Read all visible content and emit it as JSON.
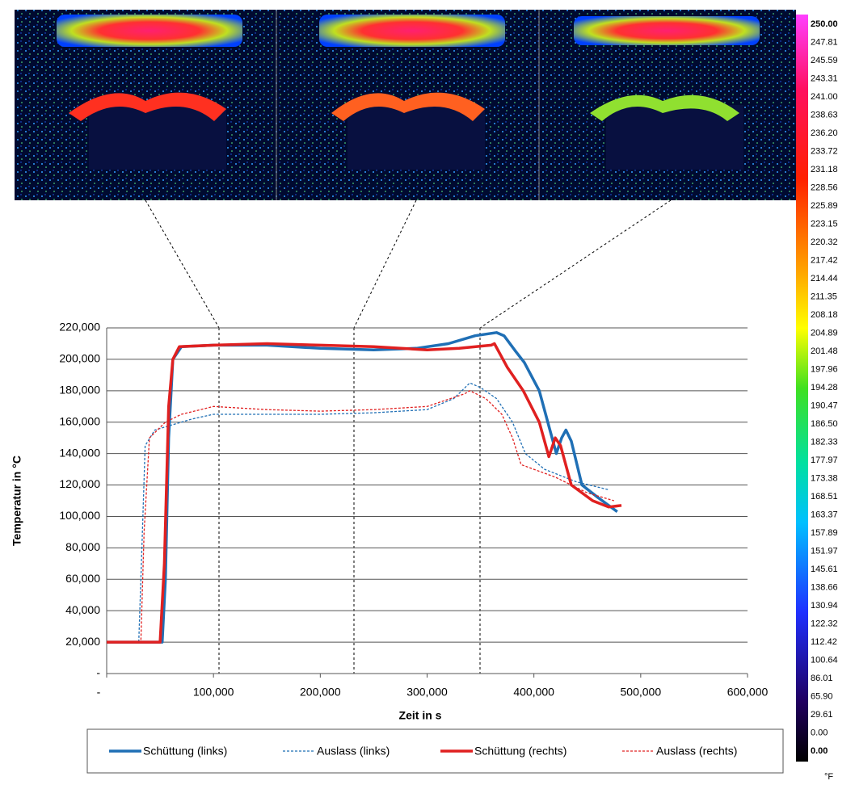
{
  "chart_data": {
    "type": "line",
    "xlabel": "Zeit in s",
    "ylabel": "Temperatur in °C",
    "xlim": [
      0,
      600
    ],
    "ylim": [
      0,
      220
    ],
    "xticks": [
      {
        "value": 0,
        "label": "-"
      },
      {
        "value": 100,
        "label": "100,000"
      },
      {
        "value": 200,
        "label": "200,000"
      },
      {
        "value": 300,
        "label": "300,000"
      },
      {
        "value": 400,
        "label": "400,000"
      },
      {
        "value": 500,
        "label": "500,000"
      },
      {
        "value": 600,
        "label": "600,000"
      }
    ],
    "yticks": [
      {
        "value": 0,
        "label": "-"
      },
      {
        "value": 20,
        "label": "20,000"
      },
      {
        "value": 40,
        "label": "40,000"
      },
      {
        "value": 60,
        "label": "60,000"
      },
      {
        "value": 80,
        "label": "80,000"
      },
      {
        "value": 100,
        "label": "100,000"
      },
      {
        "value": 120,
        "label": "120,000"
      },
      {
        "value": 140,
        "label": "140,000"
      },
      {
        "value": 160,
        "label": "160,000"
      },
      {
        "value": 180,
        "label": "180,000"
      },
      {
        "value": 200,
        "label": "200,000"
      },
      {
        "value": 220,
        "label": "220,000"
      }
    ],
    "grid": true,
    "series": [
      {
        "name": "Schüttung (links)",
        "color": "#1f6fb5",
        "dashed": false,
        "x": [
          0,
          52,
          55,
          58,
          62,
          70,
          100,
          150,
          200,
          250,
          290,
          320,
          345,
          365,
          372,
          383,
          391,
          405,
          415,
          421,
          426,
          430,
          435,
          445,
          460,
          478
        ],
        "values": [
          20,
          20,
          60,
          150,
          200,
          208,
          209,
          209,
          207,
          206,
          207,
          210,
          215,
          217,
          215,
          205,
          198,
          180,
          155,
          140,
          150,
          155,
          148,
          120,
          112,
          103
        ]
      },
      {
        "name": "Auslass (links)",
        "color": "#1f6fb5",
        "dashed": true,
        "x": [
          0,
          30,
          33,
          36,
          45,
          60,
          80,
          100,
          150,
          200,
          250,
          300,
          325,
          340,
          350,
          365,
          380,
          392,
          410,
          440,
          470
        ],
        "values": [
          20,
          20,
          80,
          145,
          155,
          158,
          162,
          165,
          165,
          165,
          166,
          168,
          175,
          185,
          182,
          175,
          160,
          140,
          130,
          122,
          117
        ]
      },
      {
        "name": "Schüttung (rechts)",
        "color": "#e02020",
        "dashed": false,
        "x": [
          0,
          50,
          54,
          58,
          62,
          68,
          100,
          150,
          200,
          250,
          300,
          330,
          360,
          363,
          375,
          390,
          405,
          414,
          420,
          425,
          435,
          455,
          470,
          482
        ],
        "values": [
          20,
          20,
          70,
          170,
          200,
          208,
          209,
          210,
          209,
          208,
          206,
          207,
          209,
          210,
          195,
          180,
          160,
          138,
          150,
          145,
          120,
          110,
          106,
          107
        ]
      },
      {
        "name": "Auslass (rechts)",
        "color": "#e02020",
        "dashed": true,
        "x": [
          0,
          32,
          35,
          40,
          55,
          70,
          100,
          150,
          200,
          250,
          300,
          335,
          340,
          355,
          370,
          380,
          388,
          420,
          450,
          475
        ],
        "values": [
          20,
          20,
          90,
          150,
          160,
          165,
          170,
          168,
          167,
          168,
          170,
          178,
          180,
          175,
          165,
          150,
          133,
          125,
          115,
          110
        ]
      }
    ]
  },
  "colorbar": {
    "labels": [
      "250.00",
      "247.81",
      "245.59",
      "243.31",
      "241.00",
      "238.63",
      "236.20",
      "233.72",
      "231.18",
      "228.56",
      "225.89",
      "223.15",
      "220.32",
      "217.42",
      "214.44",
      "211.35",
      "208.18",
      "204.89",
      "201.48",
      "197.96",
      "194.28",
      "190.47",
      "186.50",
      "182.33",
      "177.97",
      "173.38",
      "168.51",
      "163.37",
      "157.89",
      "151.97",
      "145.61",
      "138.66",
      "130.94",
      "122.32",
      "112.42",
      "100.64",
      "86.01",
      "65.90",
      "29.61",
      "0.00",
      "0.00"
    ],
    "unit": "°F"
  }
}
